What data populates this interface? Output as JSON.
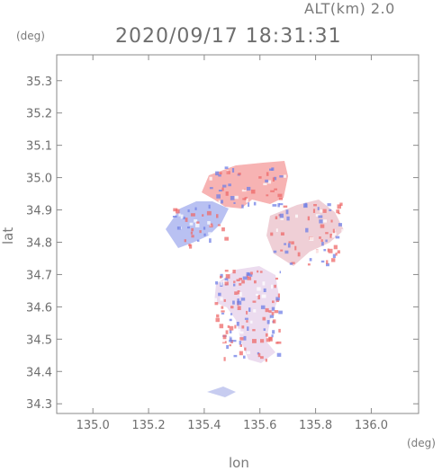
{
  "header": {
    "altitude_label": "ALT(km) 2.0",
    "timestamp": "2020/09/17 18:31:31"
  },
  "axes": {
    "y_unit": "(deg)",
    "x_unit": "(deg)",
    "y_label": "lat",
    "x_label": "lon"
  },
  "chart_data": {
    "type": "heatmap",
    "xlabel": "lon",
    "ylabel": "lat",
    "xlim": [
      134.87,
      136.17
    ],
    "ylim": [
      34.27,
      35.38
    ],
    "x_ticks": [
      "135.0",
      "135.2",
      "135.4",
      "135.6",
      "135.8",
      "136.0"
    ],
    "y_ticks": [
      "34.3",
      "34.4",
      "34.5",
      "34.6",
      "34.7",
      "34.8",
      "34.9",
      "35.0",
      "35.1",
      "35.2",
      "35.3"
    ],
    "grid": false,
    "colors": {
      "positive": "#f4a8a8",
      "negative": "#a8b4f0",
      "frame": "#8a8a8a"
    }
  }
}
